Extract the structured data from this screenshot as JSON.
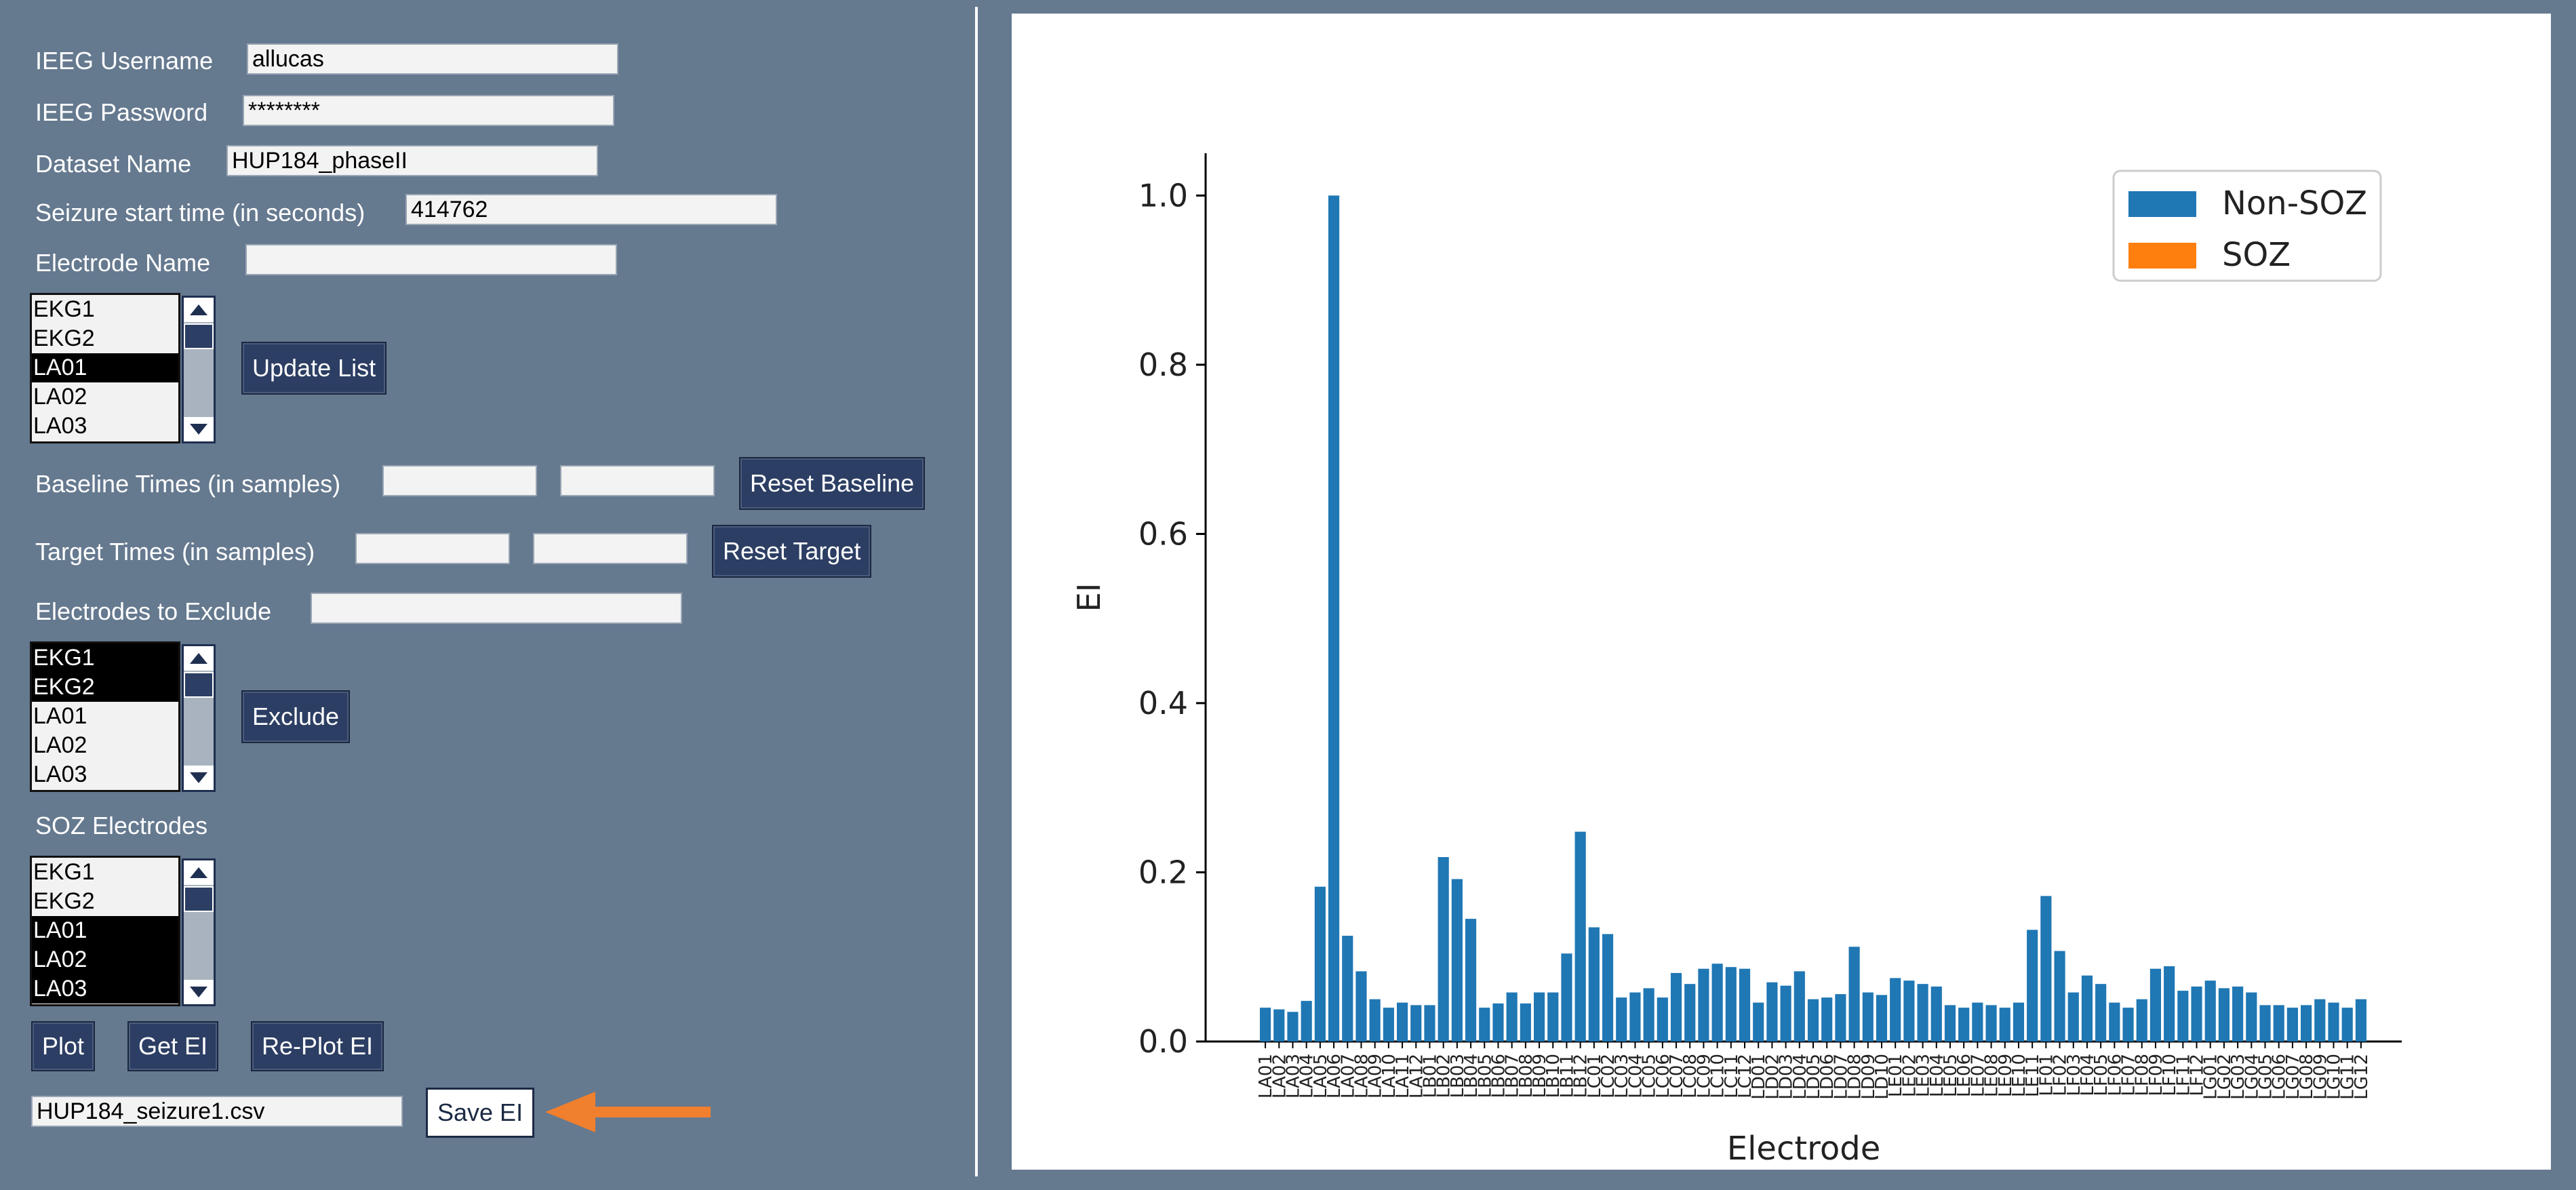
{
  "form": {
    "username_label": "IEEG Username",
    "username_value": "allucas",
    "password_label": "IEEG Password",
    "password_value": "********",
    "dataset_label": "Dataset Name",
    "dataset_value": "HUP184_phaseII",
    "seizure_label": "Seizure start time (in seconds)",
    "seizure_value": "414762",
    "electrode_label": "Electrode Name",
    "electrode_value": "",
    "update_list_button": "Update List",
    "baseline_label": "Baseline Times (in samples)",
    "baseline_start": "",
    "baseline_end": "",
    "reset_baseline_button": "Reset Baseline",
    "target_label": "Target Times (in samples)",
    "target_start": "",
    "target_end": "",
    "reset_target_button": "Reset Target",
    "exclude_label": "Electrodes to Exclude",
    "exclude_value": "",
    "exclude_button": "Exclude",
    "soz_label": "SOZ Electrodes",
    "plot_button": "Plot",
    "get_ei_button": "Get EI",
    "replot_ei_button": "Re-Plot EI",
    "filename_value": "HUP184_seizure1.csv",
    "save_ei_button": "Save EI"
  },
  "electrode_list": {
    "items": [
      {
        "label": "EKG1",
        "selected": false
      },
      {
        "label": "EKG2",
        "selected": false
      },
      {
        "label": "LA01",
        "selected": true
      },
      {
        "label": "LA02",
        "selected": false
      },
      {
        "label": "LA03",
        "selected": false
      }
    ]
  },
  "exclude_list": {
    "items": [
      {
        "label": "EKG1",
        "selected": true
      },
      {
        "label": "EKG2",
        "selected": true
      },
      {
        "label": "LA01",
        "selected": false
      },
      {
        "label": "LA02",
        "selected": false
      },
      {
        "label": "LA03",
        "selected": false
      }
    ]
  },
  "soz_list": {
    "items": [
      {
        "label": "EKG1",
        "selected": false
      },
      {
        "label": "EKG2",
        "selected": false
      },
      {
        "label": "LA01",
        "selected": true
      },
      {
        "label": "LA02",
        "selected": true
      },
      {
        "label": "LA03",
        "selected": true
      }
    ]
  },
  "colors": {
    "panel_bg": "#65798f",
    "button_bg": "#2c3e63",
    "non_soz": "#1f77b4",
    "soz": "#ff7f0e",
    "arrow": "#f07f2e"
  },
  "icons": {
    "arrow": "arrow-left-icon",
    "scroll_up": "triangle-up-icon",
    "scroll_down": "triangle-down-icon"
  },
  "chart_data": {
    "type": "bar",
    "xlabel": "Electrode",
    "ylabel": "EI",
    "ylim": [
      0,
      1.05
    ],
    "yticks": [
      "0.0",
      "0.2",
      "0.4",
      "0.6",
      "0.8",
      "1.0"
    ],
    "legend": [
      {
        "name": "Non-SOZ",
        "color": "#1f77b4"
      },
      {
        "name": "SOZ",
        "color": "#ff7f0e"
      }
    ],
    "legend_position": "top-right",
    "grid": false,
    "categories": [
      "LA01",
      "LA02",
      "LA03",
      "LA04",
      "LA05",
      "LA06",
      "LA07",
      "LA08",
      "LA09",
      "LA10",
      "LA11",
      "LA12",
      "LB01",
      "LB02",
      "LB03",
      "LB04",
      "LB05",
      "LB06",
      "LB07",
      "LB08",
      "LB09",
      "LB10",
      "LB11",
      "LB12",
      "LC01",
      "LC02",
      "LC03",
      "LC04",
      "LC05",
      "LC06",
      "LC07",
      "LC08",
      "LC09",
      "LC10",
      "LC11",
      "LC12",
      "LD01",
      "LD02",
      "LD03",
      "LD04",
      "LD05",
      "LD06",
      "LD07",
      "LD08",
      "LD09",
      "LD10",
      "LE01",
      "LE02",
      "LE03",
      "LE04",
      "LE05",
      "LE06",
      "LE07",
      "LE08",
      "LE09",
      "LE10",
      "LE11",
      "LF01",
      "LF02",
      "LF03",
      "LF04",
      "LF05",
      "LF06",
      "LF07",
      "LF08",
      "LF09",
      "LF10",
      "LF11",
      "LF12",
      "LG01",
      "LG02",
      "LG03",
      "LG04",
      "LG05",
      "LG06",
      "LG07",
      "LG08",
      "LG09",
      "LG10",
      "LG11",
      "LG12"
    ],
    "values": [
      0.04,
      0.038,
      0.035,
      0.048,
      0.183,
      1.0,
      0.125,
      0.083,
      0.05,
      0.04,
      0.046,
      0.043,
      0.043,
      0.218,
      0.192,
      0.145,
      0.04,
      0.045,
      0.058,
      0.045,
      0.058,
      0.058,
      0.104,
      0.248,
      0.135,
      0.127,
      0.052,
      0.058,
      0.063,
      0.052,
      0.081,
      0.068,
      0.086,
      0.092,
      0.088,
      0.086,
      0.046,
      0.07,
      0.066,
      0.083,
      0.05,
      0.052,
      0.056,
      0.112,
      0.058,
      0.055,
      0.075,
      0.072,
      0.068,
      0.065,
      0.043,
      0.04,
      0.046,
      0.043,
      0.04,
      0.046,
      0.132,
      0.172,
      0.107,
      0.058,
      0.078,
      0.068,
      0.046,
      0.04,
      0.05,
      0.086,
      0.089,
      0.06,
      0.065,
      0.072,
      0.063,
      0.065,
      0.058,
      0.043,
      0.043,
      0.04,
      0.043,
      0.05,
      0.046,
      0.04,
      0.05
    ],
    "soz": [
      false,
      false,
      false,
      false,
      false,
      false,
      false,
      false,
      false,
      false,
      false,
      false,
      false,
      false,
      false,
      false,
      false,
      false,
      false,
      false,
      false,
      false,
      false,
      false,
      false,
      false,
      false,
      false,
      false,
      false,
      false,
      false,
      false,
      false,
      false,
      false,
      false,
      false,
      false,
      false,
      false,
      false,
      false,
      false,
      false,
      false,
      false,
      false,
      false,
      false,
      false,
      false,
      false,
      false,
      false,
      false,
      false,
      false,
      false,
      false,
      false,
      false,
      false,
      false,
      false,
      false,
      false,
      false,
      false,
      false,
      false,
      false,
      false,
      false,
      false,
      false,
      false,
      false,
      false,
      false,
      false
    ]
  }
}
